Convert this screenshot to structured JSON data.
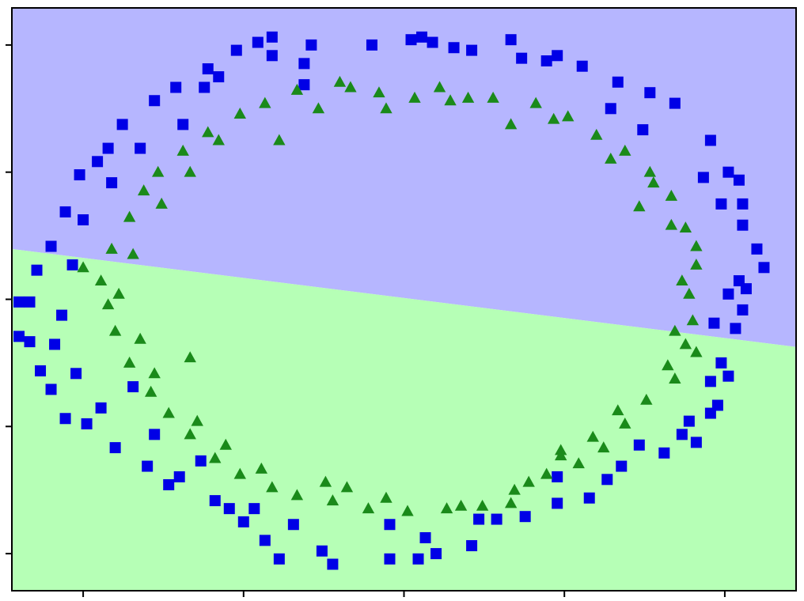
{
  "chart_data": {
    "type": "scatter",
    "title": "",
    "xlabel": "",
    "ylabel": "",
    "xlim": [
      -1.1,
      1.1
    ],
    "ylim": [
      -1.1,
      1.1
    ],
    "grid": false,
    "legend": "none",
    "x_ticks": [
      -0.9,
      -0.45,
      0.0,
      0.45,
      0.9
    ],
    "y_ticks": [
      -0.96,
      -0.48,
      0.0,
      0.48,
      0.96
    ],
    "tick_labels_visible": false,
    "decision_boundary": {
      "type": "linear",
      "points": [
        [
          -1.1,
          0.19
        ],
        [
          1.1,
          -0.18
        ]
      ],
      "region_above": {
        "class": "class_0",
        "color": "#b6b6ff"
      },
      "region_below": {
        "class": "class_1",
        "color": "#b6ffb6"
      }
    },
    "series": [
      {
        "id": "class_0",
        "marker": "square",
        "color": "#0000e6",
        "points": [
          [
            -0.37,
            0.99
          ],
          [
            -0.26,
            0.96
          ],
          [
            -0.09,
            0.96
          ],
          [
            0.02,
            0.98
          ],
          [
            0.08,
            0.97
          ],
          [
            0.19,
            0.94
          ],
          [
            0.3,
            0.98
          ],
          [
            0.33,
            0.91
          ],
          [
            0.43,
            0.92
          ],
          [
            0.5,
            0.88
          ],
          [
            0.6,
            0.82
          ],
          [
            0.69,
            0.78
          ],
          [
            0.76,
            0.74
          ],
          [
            0.86,
            0.6
          ],
          [
            0.91,
            0.48
          ],
          [
            0.94,
            0.45
          ],
          [
            0.95,
            0.36
          ],
          [
            0.99,
            0.19
          ],
          [
            1.01,
            0.12
          ],
          [
            0.96,
            0.04
          ],
          [
            0.95,
            -0.04
          ],
          [
            0.93,
            -0.11
          ],
          [
            0.89,
            -0.24
          ],
          [
            0.86,
            -0.31
          ],
          [
            0.86,
            -0.43
          ],
          [
            0.8,
            -0.46
          ],
          [
            0.82,
            -0.54
          ],
          [
            0.73,
            -0.58
          ],
          [
            0.57,
            -0.68
          ],
          [
            0.52,
            -0.75
          ],
          [
            0.43,
            -0.77
          ],
          [
            0.34,
            -0.82
          ],
          [
            0.26,
            -0.83
          ],
          [
            0.19,
            -0.93
          ],
          [
            0.09,
            -0.96
          ],
          [
            0.04,
            -0.98
          ],
          [
            -0.04,
            -0.98
          ],
          [
            -0.2,
            -1.0
          ],
          [
            -0.35,
            -0.98
          ],
          [
            -0.39,
            -0.91
          ],
          [
            -0.45,
            -0.84
          ],
          [
            -0.49,
            -0.79
          ],
          [
            -0.53,
            -0.76
          ],
          [
            -0.66,
            -0.7
          ],
          [
            -0.72,
            -0.63
          ],
          [
            -0.81,
            -0.56
          ],
          [
            -0.89,
            -0.47
          ],
          [
            -0.95,
            -0.45
          ],
          [
            -0.99,
            -0.34
          ],
          [
            -1.02,
            -0.27
          ],
          [
            -1.05,
            -0.16
          ],
          [
            -1.08,
            -0.14
          ],
          [
            -1.05,
            -0.01
          ],
          [
            -1.03,
            0.11
          ],
          [
            -0.99,
            0.2
          ],
          [
            -0.95,
            0.33
          ],
          [
            -0.91,
            0.47
          ],
          [
            -0.86,
            0.52
          ],
          [
            -0.83,
            0.57
          ],
          [
            -0.79,
            0.66
          ],
          [
            -0.7,
            0.75
          ],
          [
            -0.64,
            0.8
          ],
          [
            -0.55,
            0.87
          ],
          [
            -0.47,
            0.94
          ],
          [
            -0.41,
            0.97
          ],
          [
            -0.62,
            0.66
          ],
          [
            -0.56,
            0.8
          ],
          [
            -0.52,
            0.84
          ],
          [
            -0.37,
            0.92
          ],
          [
            -0.28,
            0.89
          ],
          [
            0.05,
            0.99
          ],
          [
            0.14,
            0.95
          ],
          [
            0.58,
            0.72
          ],
          [
            0.67,
            0.64
          ],
          [
            0.84,
            0.46
          ],
          [
            0.89,
            0.36
          ],
          [
            0.94,
            0.07
          ],
          [
            0.91,
            0.02
          ],
          [
            0.87,
            -0.09
          ],
          [
            0.91,
            -0.29
          ],
          [
            0.78,
            -0.51
          ],
          [
            0.61,
            -0.63
          ],
          [
            0.43,
            -0.67
          ],
          [
            0.21,
            -0.83
          ],
          [
            0.06,
            -0.9
          ],
          [
            -0.23,
            -0.95
          ],
          [
            -0.31,
            -0.85
          ],
          [
            -0.42,
            -0.79
          ],
          [
            -0.57,
            -0.61
          ],
          [
            -0.7,
            -0.51
          ],
          [
            -0.76,
            -0.33
          ],
          [
            -0.92,
            -0.28
          ],
          [
            -0.98,
            -0.17
          ],
          [
            -0.96,
            -0.06
          ],
          [
            -0.93,
            0.13
          ],
          [
            -0.9,
            0.3
          ],
          [
            -0.82,
            0.44
          ],
          [
            -0.74,
            0.57
          ],
          [
            -0.28,
            0.81
          ],
          [
            0.4,
            0.9
          ],
          [
            0.95,
            0.28
          ],
          [
            0.88,
            -0.4
          ],
          [
            0.66,
            -0.55
          ],
          [
            -0.04,
            -0.85
          ],
          [
            -0.63,
            -0.67
          ],
          [
            -0.85,
            -0.41
          ],
          [
            -1.08,
            -0.01
          ]
        ]
      },
      {
        "id": "class_1",
        "marker": "triangle",
        "color": "#1a8a1a",
        "points": [
          [
            -0.3,
            0.79
          ],
          [
            -0.18,
            0.82
          ],
          [
            -0.07,
            0.78
          ],
          [
            0.03,
            0.76
          ],
          [
            0.13,
            0.75
          ],
          [
            0.25,
            0.76
          ],
          [
            0.37,
            0.74
          ],
          [
            0.46,
            0.69
          ],
          [
            0.54,
            0.62
          ],
          [
            0.62,
            0.56
          ],
          [
            0.69,
            0.48
          ],
          [
            0.75,
            0.39
          ],
          [
            0.79,
            0.27
          ],
          [
            0.82,
            0.13
          ],
          [
            0.8,
            0.02
          ],
          [
            0.81,
            -0.08
          ],
          [
            0.79,
            -0.17
          ],
          [
            0.76,
            -0.3
          ],
          [
            0.68,
            -0.38
          ],
          [
            0.62,
            -0.47
          ],
          [
            0.56,
            -0.56
          ],
          [
            0.49,
            -0.62
          ],
          [
            0.4,
            -0.66
          ],
          [
            0.31,
            -0.72
          ],
          [
            0.22,
            -0.78
          ],
          [
            0.12,
            -0.79
          ],
          [
            0.01,
            -0.8
          ],
          [
            -0.1,
            -0.79
          ],
          [
            -0.2,
            -0.76
          ],
          [
            -0.3,
            -0.74
          ],
          [
            -0.37,
            -0.71
          ],
          [
            -0.46,
            -0.66
          ],
          [
            -0.53,
            -0.6
          ],
          [
            -0.6,
            -0.51
          ],
          [
            -0.66,
            -0.43
          ],
          [
            -0.71,
            -0.35
          ],
          [
            -0.77,
            -0.24
          ],
          [
            -0.81,
            -0.12
          ],
          [
            -0.83,
            -0.02
          ],
          [
            -0.85,
            0.07
          ],
          [
            -0.82,
            0.19
          ],
          [
            -0.77,
            0.31
          ],
          [
            -0.73,
            0.41
          ],
          [
            -0.69,
            0.48
          ],
          [
            -0.62,
            0.56
          ],
          [
            -0.55,
            0.63
          ],
          [
            -0.46,
            0.7
          ],
          [
            -0.39,
            0.74
          ],
          [
            -0.24,
            0.72
          ],
          [
            -0.05,
            0.72
          ],
          [
            0.18,
            0.76
          ],
          [
            0.42,
            0.68
          ],
          [
            0.58,
            0.53
          ],
          [
            0.7,
            0.44
          ],
          [
            0.75,
            0.28
          ],
          [
            0.78,
            0.07
          ],
          [
            0.76,
            -0.12
          ],
          [
            0.74,
            -0.25
          ],
          [
            0.6,
            -0.42
          ],
          [
            0.53,
            -0.52
          ],
          [
            0.44,
            -0.59
          ],
          [
            0.35,
            -0.69
          ],
          [
            0.16,
            -0.78
          ],
          [
            -0.05,
            -0.75
          ],
          [
            -0.22,
            -0.69
          ],
          [
            -0.4,
            -0.64
          ],
          [
            -0.5,
            -0.55
          ],
          [
            -0.58,
            -0.46
          ],
          [
            -0.7,
            -0.28
          ],
          [
            -0.74,
            -0.15
          ],
          [
            -0.8,
            0.02
          ],
          [
            -0.76,
            0.17
          ],
          [
            -0.68,
            0.36
          ],
          [
            -0.6,
            0.48
          ],
          [
            -0.52,
            0.6
          ],
          [
            -0.35,
            0.6
          ],
          [
            -0.15,
            0.8
          ],
          [
            0.1,
            0.8
          ],
          [
            0.3,
            0.66
          ],
          [
            0.66,
            0.35
          ],
          [
            0.82,
            0.2
          ],
          [
            0.82,
            -0.2
          ],
          [
            0.44,
            -0.57
          ],
          [
            0.3,
            -0.77
          ],
          [
            -0.16,
            -0.71
          ],
          [
            -0.6,
            -0.22
          ],
          [
            -0.9,
            0.12
          ]
        ]
      }
    ]
  }
}
